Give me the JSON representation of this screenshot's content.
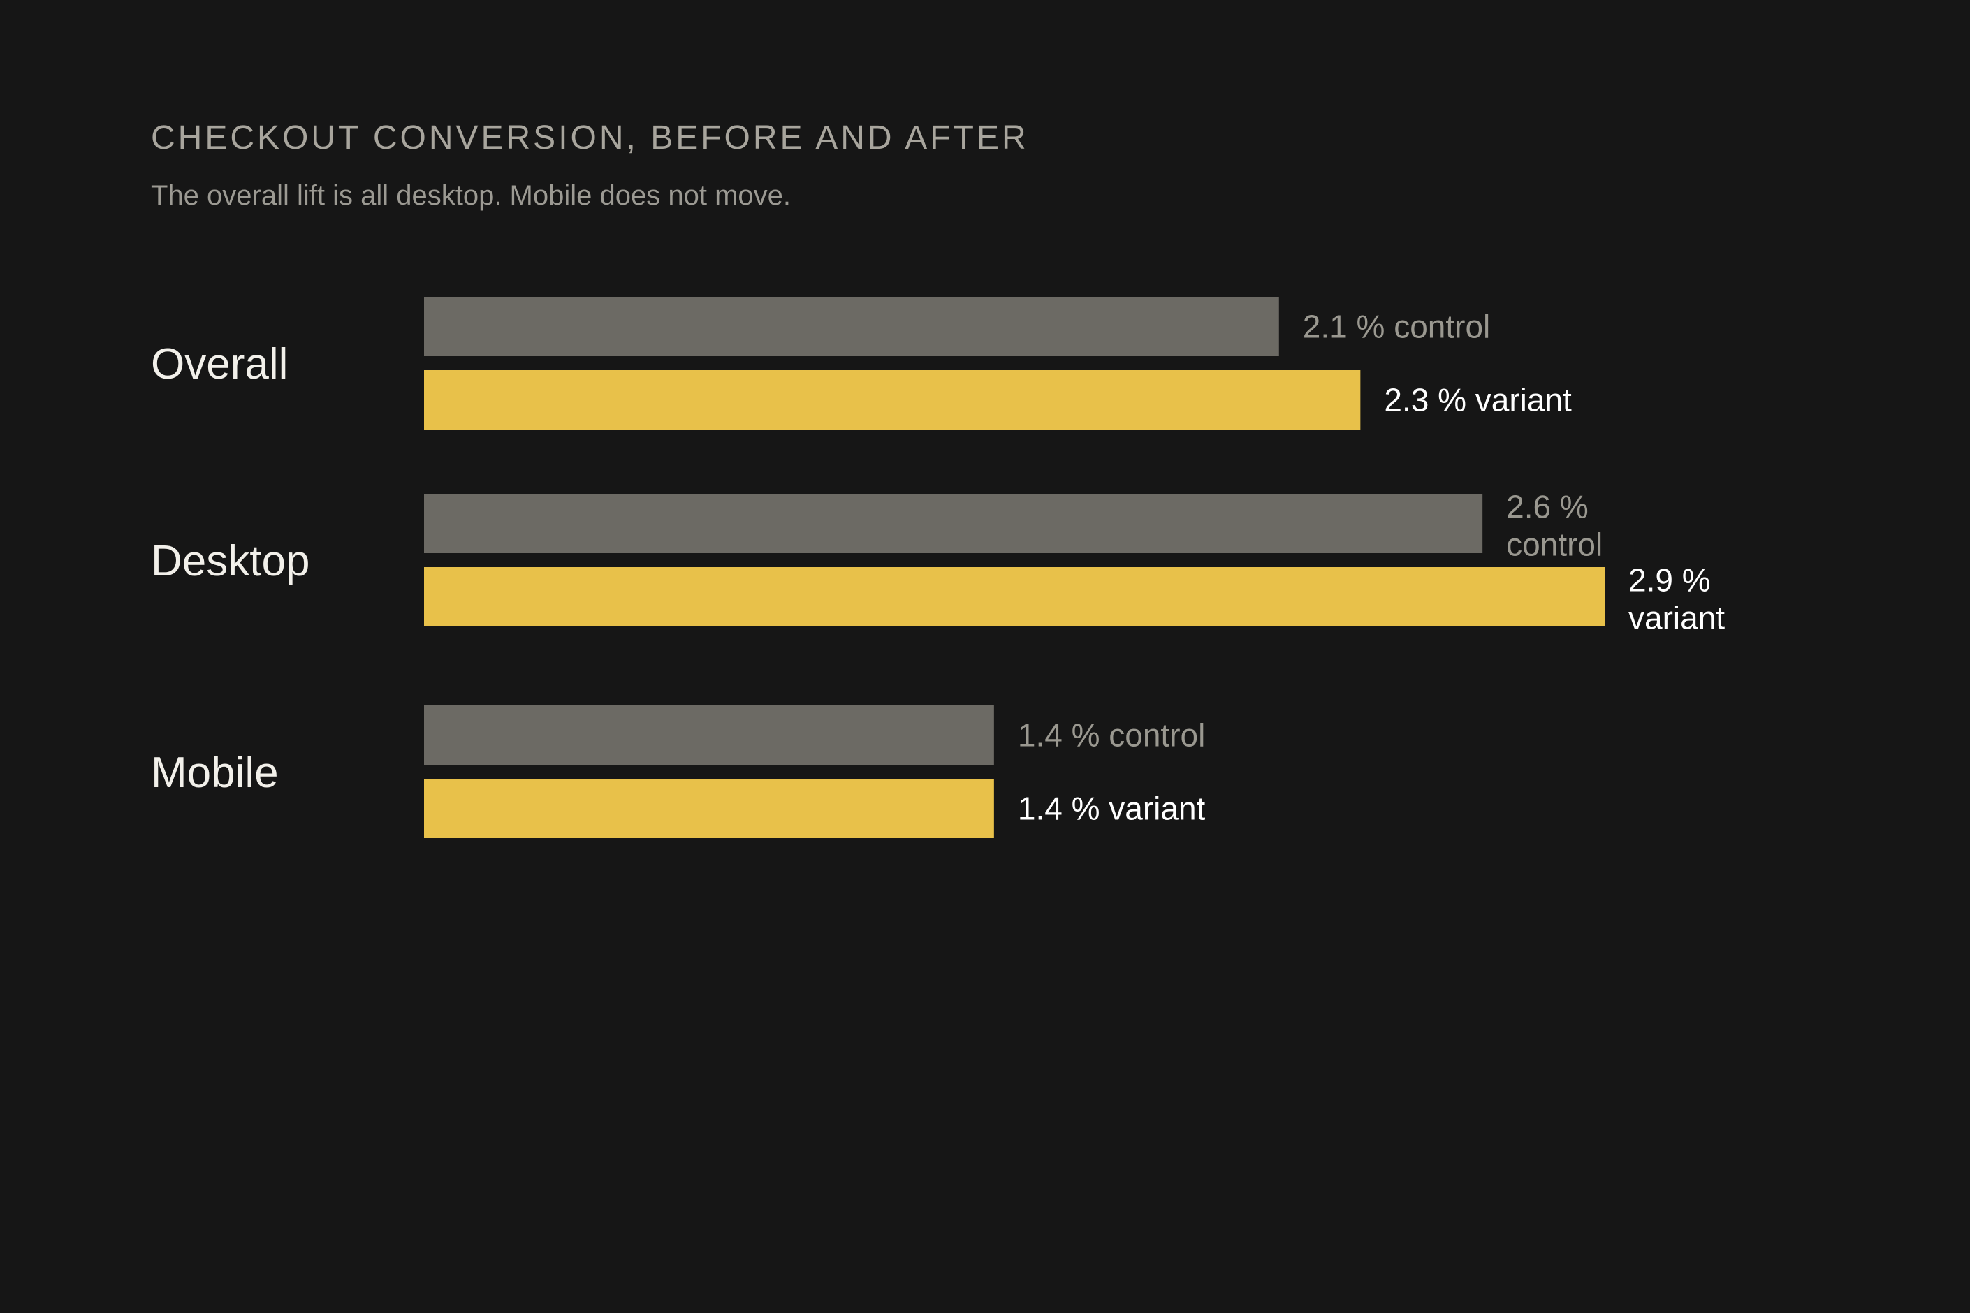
{
  "header": {
    "title": "CHECKOUT CONVERSION, BEFORE AND AFTER",
    "subtitle": "The overall lift is all desktop. Mobile does not move."
  },
  "colors": {
    "background": "#161616",
    "control": "#6c6a64",
    "variant": "#e8c14a",
    "control_label": "#9a9890",
    "variant_label": "#ffffff",
    "category_label": "#f2f0ea"
  },
  "chart_data": {
    "type": "bar",
    "orientation": "horizontal",
    "categories": [
      "Overall",
      "Desktop",
      "Mobile"
    ],
    "unit": "%",
    "series": [
      {
        "name": "control",
        "values": [
          2.1,
          2.6,
          1.4
        ]
      },
      {
        "name": "variant",
        "values": [
          2.3,
          2.9,
          1.4
        ]
      }
    ],
    "data_labels": [
      {
        "control": "2.1 % control",
        "variant": "2.3 % variant"
      },
      {
        "control": "2.6 % control",
        "variant": "2.9 % variant"
      },
      {
        "control": "1.4 % control",
        "variant": "1.4 % variant"
      }
    ],
    "xlim": [
      0,
      2.9
    ],
    "grid": false,
    "legend": "none"
  }
}
